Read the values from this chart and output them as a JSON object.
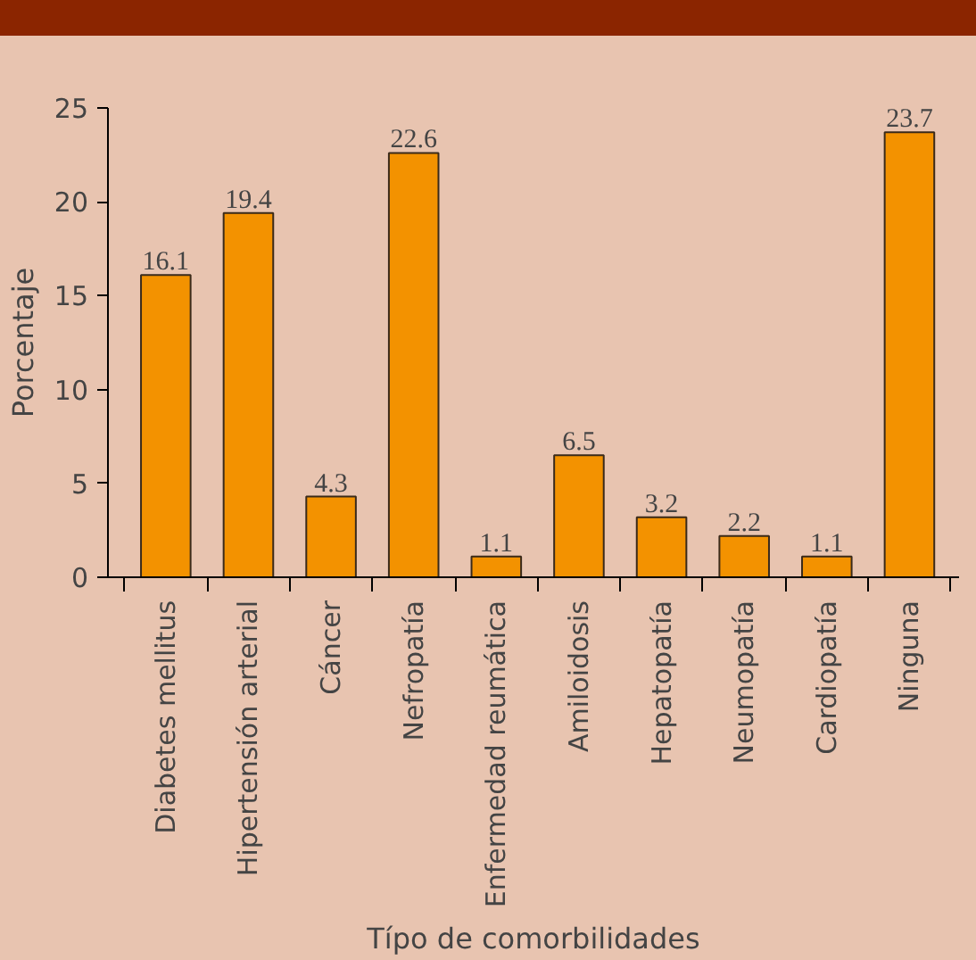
{
  "chart_data": {
    "type": "bar",
    "xlabel": "Típo de comorbilidades",
    "ylabel": "Porcentaje",
    "categories": [
      "Diabetes mellitus",
      "Hipertensión arterial",
      "Cáncer",
      "Nefropatía",
      "Enfermedad reumática",
      "Amiloidosis",
      "Hepatopatía",
      "Neumopatía",
      "Cardiopatía",
      "Ninguna"
    ],
    "values": [
      16.1,
      19.4,
      4.3,
      22.6,
      1.1,
      6.5,
      3.2,
      2.2,
      1.1,
      23.7
    ],
    "color": "#f39200",
    "ylim": [
      0,
      25
    ],
    "yticks": [
      0,
      5,
      10,
      15,
      20,
      25
    ],
    "data_labels": true,
    "grid": false
  }
}
